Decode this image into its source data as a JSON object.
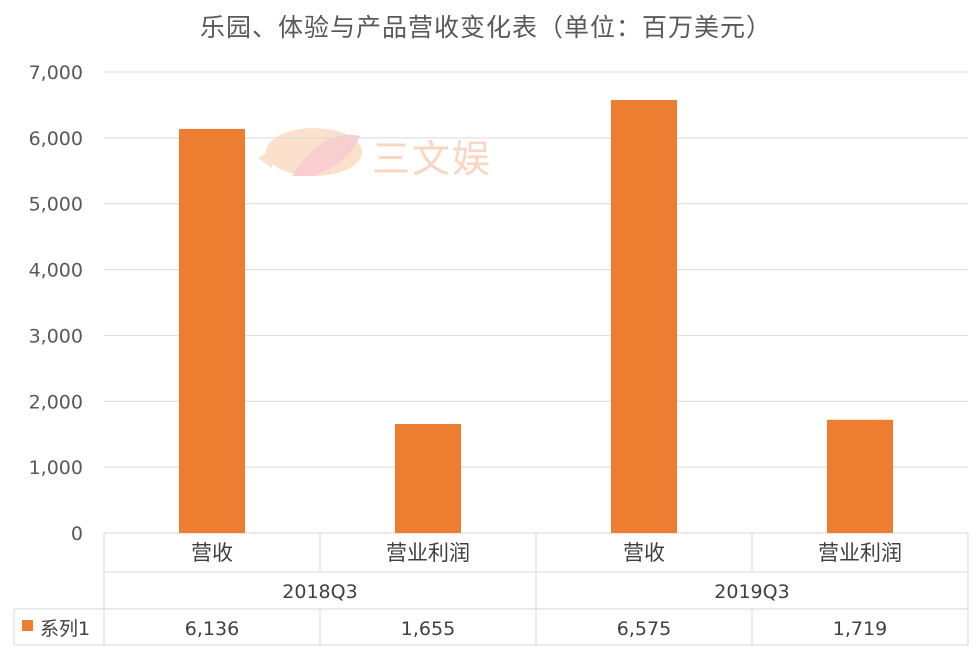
{
  "chart_data": {
    "type": "bar",
    "title": "乐园、体验与产品营收变化表（单位：百万美元）",
    "categories": [
      "营收",
      "营业利润",
      "营收",
      "营业利润"
    ],
    "groups": [
      {
        "label": "2018Q3",
        "span": 2
      },
      {
        "label": "2019Q3",
        "span": 2
      }
    ],
    "series": [
      {
        "name": "系列1",
        "values": [
          6136,
          1655,
          6575,
          1719
        ],
        "color": "#ed7d31"
      }
    ],
    "table_values": [
      "6,136",
      "1,655",
      "6,575",
      "1,719"
    ],
    "yticks": [
      "0",
      "1,000",
      "2,000",
      "3,000",
      "4,000",
      "5,000",
      "6,000",
      "7,000"
    ],
    "ylim": [
      0,
      7000
    ],
    "grid": true,
    "legend_position": "data-table"
  },
  "watermark": {
    "text": "三文娱"
  }
}
